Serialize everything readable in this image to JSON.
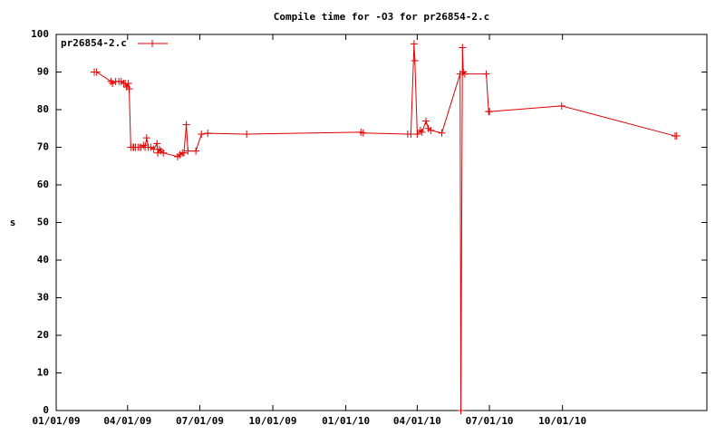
{
  "chart_data": {
    "type": "line",
    "title": "Compile time for -O3 for pr26854-2.c",
    "y_label": "s",
    "x": [
      "2009-02-18",
      "2009-02-21",
      "2009-03-11",
      "2009-03-13",
      "2009-03-17",
      "2009-03-21",
      "2009-03-24",
      "2009-03-27",
      "2009-03-29",
      "2009-03-31",
      "2009-04-02",
      "2009-04-03",
      "2009-04-05",
      "2009-04-08",
      "2009-04-09",
      "2009-04-11",
      "2009-04-14",
      "2009-04-16",
      "2009-04-18",
      "2009-04-21",
      "2009-04-23",
      "2009-04-25",
      "2009-04-27",
      "2009-04-30",
      "2009-05-04",
      "2009-05-08",
      "2009-05-09",
      "2009-05-11",
      "2009-05-13",
      "2009-05-16",
      "2009-06-03",
      "2009-06-06",
      "2009-06-09",
      "2009-06-11",
      "2009-06-14",
      "2009-06-16",
      "2009-06-26",
      "2009-07-03",
      "2009-07-11",
      "2009-08-29",
      "2010-01-20",
      "2010-01-23",
      "2010-03-20",
      "2010-03-24",
      "2010-03-28",
      "2010-03-29",
      "2010-04-01",
      "2010-04-05",
      "2010-04-07",
      "2010-04-12",
      "2010-04-15",
      "2010-04-18",
      "2010-05-02",
      "2010-05-25",
      "2010-05-26",
      "2010-05-28",
      "2010-05-29",
      "2010-05-31",
      "2010-06-27",
      "2010-06-30",
      "2010-07-01",
      "2010-09-30",
      "2011-02-20",
      "2011-02-22"
    ],
    "series": [
      {
        "name": "pr26854-2.c",
        "color": "#e00000",
        "values": [
          90,
          90,
          87.5,
          87,
          87.5,
          87.5,
          87.5,
          87,
          87,
          86,
          87,
          85.5,
          70,
          70,
          70,
          70,
          70,
          70,
          70,
          70.5,
          70,
          72.5,
          70,
          70,
          69.5,
          71,
          68.5,
          69.5,
          69,
          68.5,
          67.5,
          68,
          68.5,
          68.5,
          76,
          69,
          69,
          73.5,
          73.7,
          73.5,
          74,
          73.8,
          73.5,
          73.5,
          97.5,
          93,
          73.5,
          74.5,
          74,
          77,
          75,
          74.5,
          73.8,
          89.5,
          0,
          96.5,
          90,
          89.5,
          89.5,
          79.5,
          79.5,
          81,
          73,
          73
        ]
      }
    ],
    "xlim": [
      "2009-01-01",
      "2011-04-01"
    ],
    "xticks": [
      {
        "value": "2009-01-01",
        "label": "01/01/09"
      },
      {
        "value": "2009-04-01",
        "label": "04/01/09"
      },
      {
        "value": "2009-07-01",
        "label": "07/01/09"
      },
      {
        "value": "2009-10-01",
        "label": "10/01/09"
      },
      {
        "value": "2010-01-01",
        "label": "01/01/10"
      },
      {
        "value": "2010-04-01",
        "label": "04/01/10"
      },
      {
        "value": "2010-07-01",
        "label": "07/01/10"
      },
      {
        "value": "2010-10-01",
        "label": "10/01/10"
      }
    ],
    "ylim": [
      0,
      100
    ],
    "yticks": [
      0,
      10,
      20,
      30,
      40,
      50,
      60,
      70,
      80,
      90,
      100
    ],
    "legend": "top-left"
  }
}
